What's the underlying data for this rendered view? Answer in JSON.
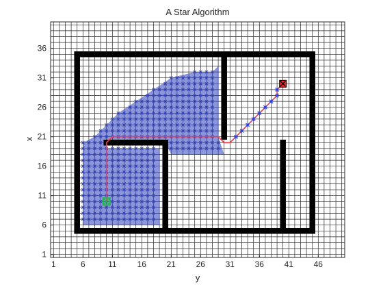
{
  "chart_data": {
    "type": "scatter",
    "title": "A Star Algorithm",
    "xlabel": "y",
    "ylabel": "x",
    "xlim": [
      0.5,
      50.5
    ],
    "ylim": [
      0.5,
      40.5
    ],
    "xticks": [
      1,
      6,
      11,
      16,
      21,
      26,
      31,
      36,
      41,
      46
    ],
    "yticks": [
      1,
      6,
      11,
      16,
      21,
      26,
      31,
      36
    ],
    "grid": "every cell",
    "walls": [
      {
        "y": [
          5,
          45
        ],
        "x": [
          35,
          35
        ]
      },
      {
        "y": [
          5,
          45
        ],
        "x": [
          5,
          5
        ]
      },
      {
        "y": [
          5,
          5
        ],
        "x": [
          5,
          35
        ]
      },
      {
        "y": [
          45,
          45
        ],
        "x": [
          5,
          35
        ]
      },
      {
        "y": [
          30,
          30
        ],
        "x": [
          21,
          35
        ]
      },
      {
        "y": [
          10,
          20
        ],
        "x": [
          20,
          20
        ]
      },
      {
        "y": [
          20,
          20
        ],
        "x": [
          5,
          20
        ]
      },
      {
        "y": [
          40,
          40
        ],
        "x": [
          5,
          20
        ]
      }
    ],
    "explored_outline": [
      [
        6,
        6
      ],
      [
        19,
        6
      ],
      [
        19,
        19
      ],
      [
        10,
        19
      ],
      [
        10,
        20
      ],
      [
        20,
        20
      ],
      [
        21,
        18
      ],
      [
        30,
        18
      ],
      [
        29,
        21
      ],
      [
        29,
        24
      ],
      [
        29,
        33
      ],
      [
        28,
        32
      ],
      [
        25,
        32
      ],
      [
        21,
        31
      ],
      [
        18,
        29
      ],
      [
        15,
        27
      ],
      [
        12,
        25
      ],
      [
        10,
        23
      ],
      [
        8,
        21
      ],
      [
        6,
        20
      ]
    ],
    "path": [
      [
        10,
        10
      ],
      [
        10,
        20
      ],
      [
        11,
        21
      ],
      [
        29,
        21
      ],
      [
        30,
        20
      ],
      [
        31,
        20
      ],
      [
        32,
        21
      ],
      [
        33,
        22
      ],
      [
        34,
        23
      ],
      [
        35,
        24
      ],
      [
        36,
        25
      ],
      [
        37,
        26
      ],
      [
        38,
        27
      ],
      [
        39,
        28
      ],
      [
        39,
        29
      ],
      [
        40,
        30
      ]
    ],
    "start": [
      10,
      10
    ],
    "goal": [
      40,
      30
    ],
    "colors": {
      "wall": "#000000",
      "explored": "#2e3fbf",
      "path": "#ff3344",
      "path_markers": "#2f3fd8",
      "start": "#1fb84a",
      "goal": "#ff2020"
    }
  }
}
